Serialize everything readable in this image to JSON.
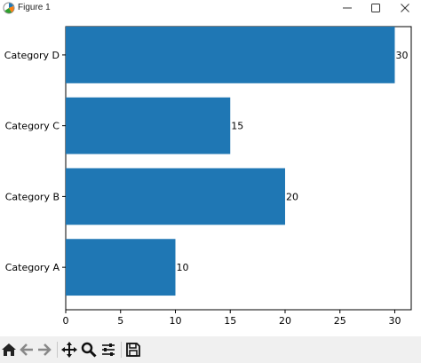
{
  "window": {
    "title": "Figure 1"
  },
  "icons": {
    "app": "matplotlib-icon",
    "minimize": "minimize-icon",
    "maximize": "maximize-icon",
    "close": "close-icon",
    "home": "home-icon",
    "back": "arrow-left-icon",
    "forward": "arrow-right-icon",
    "pan": "move-icon",
    "zoom": "magnifier-icon",
    "configure": "sliders-icon",
    "save": "save-icon"
  },
  "colors": {
    "bar": "#1f77b4"
  },
  "chart_data": {
    "type": "bar",
    "orientation": "horizontal",
    "categories": [
      "Category A",
      "Category B",
      "Category C",
      "Category D"
    ],
    "values": [
      10,
      20,
      15,
      30
    ],
    "data_labels": [
      "10",
      "20",
      "15",
      "30"
    ],
    "xlim": [
      0,
      31.5
    ],
    "xticks": [
      0,
      5,
      10,
      15,
      20,
      25,
      30
    ],
    "xticklabels": [
      "0",
      "5",
      "10",
      "15",
      "20",
      "25",
      "30"
    ],
    "grid": false
  }
}
